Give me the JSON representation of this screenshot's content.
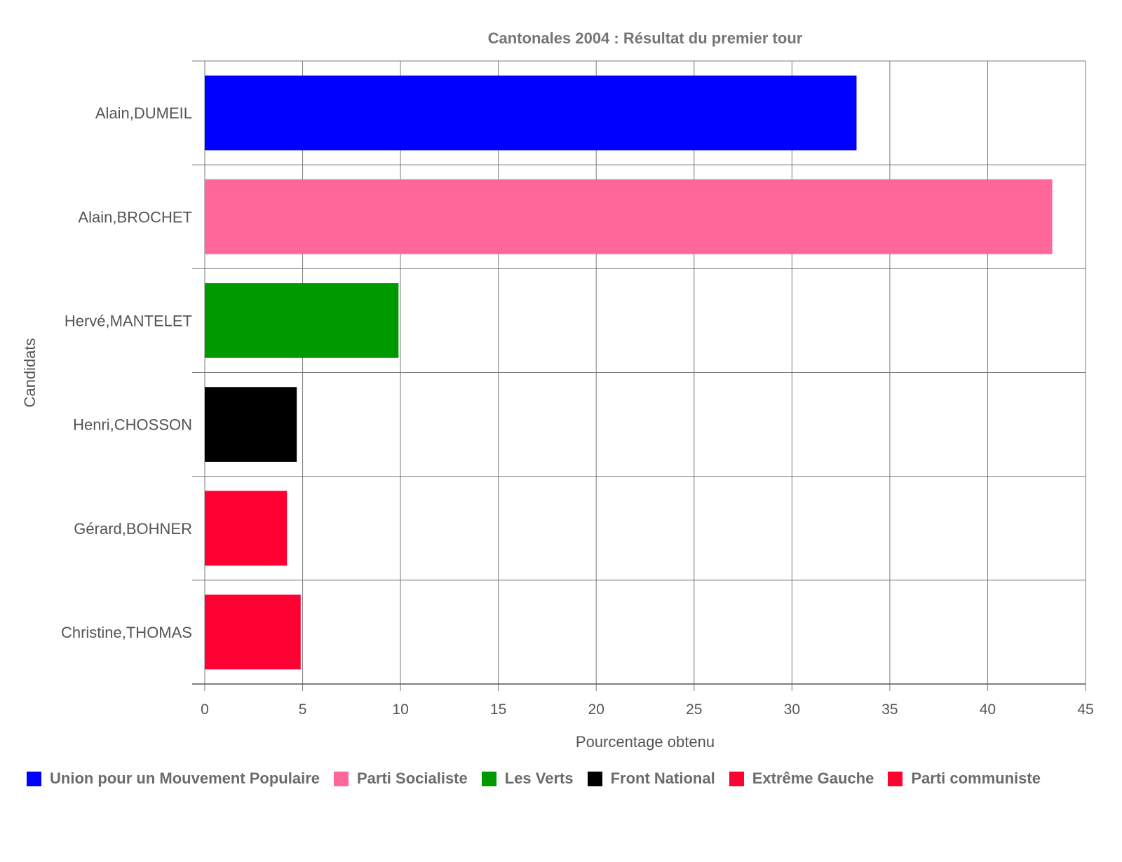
{
  "chart_data": {
    "type": "bar",
    "orientation": "horizontal",
    "title": "Cantonales 2004 : Résultat du premier tour",
    "xlabel": "Pourcentage obtenu",
    "ylabel": "Candidats",
    "xlim": [
      0,
      45
    ],
    "xticks": [
      "0",
      "5",
      "10",
      "15",
      "20",
      "25",
      "30",
      "35",
      "40",
      "45"
    ],
    "categories": [
      "Alain,DUMEIL",
      "Alain,BROCHET",
      "Hervé,MANTELET",
      "Henri,CHOSSON",
      "Gérard,BOHNER",
      "Christine,THOMAS"
    ],
    "values": [
      33.3,
      43.3,
      9.9,
      4.7,
      4.2,
      4.9
    ],
    "colors": [
      "#0000ff",
      "#ff6699",
      "#009900",
      "#000000",
      "#ff0033",
      "#ff0033"
    ],
    "grid": true,
    "legend_position": "bottom-left",
    "legend": [
      {
        "label": "Union pour un Mouvement Populaire",
        "color": "#0000ff"
      },
      {
        "label": "Parti Socialiste",
        "color": "#ff6699"
      },
      {
        "label": "Les Verts",
        "color": "#009900"
      },
      {
        "label": "Front National",
        "color": "#000000"
      },
      {
        "label": "Extrême Gauche",
        "color": "#ff0033"
      },
      {
        "label": "Parti communiste",
        "color": "#ff0033"
      }
    ]
  }
}
